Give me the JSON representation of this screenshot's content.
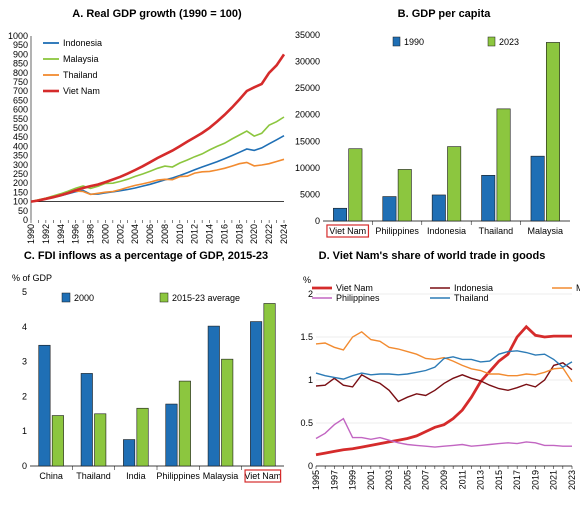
{
  "chart_data": [
    {
      "type": "line",
      "title": "A. Real GDP growth (1990 = 100)",
      "x": [
        1990,
        1991,
        1992,
        1993,
        1994,
        1995,
        1996,
        1997,
        1998,
        1999,
        2000,
        2001,
        2002,
        2003,
        2004,
        2005,
        2006,
        2007,
        2008,
        2009,
        2010,
        2011,
        2012,
        2013,
        2014,
        2015,
        2016,
        2017,
        2018,
        2019,
        2020,
        2021,
        2022,
        2023,
        2024
      ],
      "x_ticks": [
        "1990",
        "1992",
        "1994",
        "1996",
        "1998",
        "2000",
        "2002",
        "2004",
        "2006",
        "2008",
        "2010",
        "2012",
        "2014",
        "2016",
        "2018",
        "2020",
        "2022",
        "2024"
      ],
      "ylim": [
        0,
        1000
      ],
      "y_ticks": [
        "0",
        "50",
        "100",
        "150",
        "200",
        "250",
        "300",
        "350",
        "400",
        "450",
        "500",
        "550",
        "600",
        "650",
        "700",
        "750",
        "800",
        "850",
        "900",
        "950",
        "1000"
      ],
      "legend_position": "top-left",
      "series": [
        {
          "name": "Indonesia",
          "color": "#1f6fb5",
          "values": [
            100,
            107,
            115,
            123,
            132,
            143,
            154,
            161,
            140,
            141,
            148,
            153,
            159,
            166,
            174,
            184,
            194,
            206,
            218,
            228,
            242,
            257,
            273,
            288,
            302,
            317,
            333,
            350,
            368,
            386,
            378,
            392,
            414,
            436,
            458
          ]
        },
        {
          "name": "Malaysia",
          "color": "#8cc63f",
          "values": [
            100,
            110,
            119,
            131,
            143,
            157,
            173,
            185,
            172,
            183,
            199,
            200,
            210,
            222,
            237,
            250,
            265,
            281,
            293,
            288,
            310,
            326,
            344,
            359,
            381,
            400,
            417,
            440,
            462,
            483,
            456,
            471,
            515,
            534,
            560
          ]
        },
        {
          "name": "Thailand",
          "color": "#f28b30",
          "values": [
            100,
            109,
            118,
            127,
            137,
            149,
            157,
            155,
            139,
            145,
            151,
            155,
            165,
            177,
            188,
            196,
            206,
            217,
            221,
            219,
            236,
            238,
            255,
            262,
            264,
            272,
            281,
            293,
            306,
            313,
            294,
            299,
            306,
            318,
            330
          ]
        },
        {
          "name": "Viet Nam",
          "color": "#d52b2b",
          "values": [
            100,
            106,
            115,
            124,
            135,
            147,
            161,
            174,
            184,
            193,
            206,
            220,
            235,
            252,
            272,
            292,
            314,
            337,
            357,
            377,
            401,
            426,
            449,
            473,
            501,
            535,
            571,
            611,
            655,
            701,
            721,
            739,
            800,
            841,
            900
          ]
        }
      ]
    },
    {
      "type": "bar",
      "title": "B. GDP per capita",
      "categories": [
        "Viet Nam",
        "Philippines",
        "Indonesia",
        "Thailand",
        "Malaysia"
      ],
      "highlight": "Viet Nam",
      "ylim": [
        0,
        35000
      ],
      "y_ticks": [
        "0",
        "5000",
        "10000",
        "15000",
        "20000",
        "25000",
        "30000",
        "35000"
      ],
      "legend_position": "top-left",
      "series": [
        {
          "name": "1990",
          "color": "#1f6fb5",
          "values": [
            2400,
            4600,
            4900,
            8600,
            12200
          ]
        },
        {
          "name": "2023",
          "color": "#8cc63f",
          "values": [
            13600,
            9700,
            14000,
            21100,
            33600
          ]
        }
      ]
    },
    {
      "type": "bar",
      "title": "C. FDI inflows as a percentage of GDP, 2015-23",
      "ylabel": "% of GDP",
      "categories": [
        "China",
        "Thailand",
        "India",
        "Philippines",
        "Malaysia",
        "Viet Nam"
      ],
      "highlight": "Viet Nam",
      "ylim": [
        0,
        5
      ],
      "y_ticks": [
        "0",
        "1",
        "2",
        "3",
        "4",
        "5"
      ],
      "legend_position": "top",
      "series": [
        {
          "name": "2000",
          "color": "#1f6fb5",
          "values": [
            3.47,
            2.66,
            0.76,
            1.78,
            4.02,
            4.15
          ]
        },
        {
          "name": "2015-23 average",
          "color": "#8cc63f",
          "values": [
            1.45,
            1.5,
            1.66,
            2.44,
            3.07,
            4.67
          ]
        }
      ]
    },
    {
      "type": "line",
      "title": "D. Viet Nam's share of world trade in goods",
      "ylabel": "%",
      "x": [
        1995,
        1996,
        1997,
        1998,
        1999,
        2000,
        2001,
        2002,
        2003,
        2004,
        2005,
        2006,
        2007,
        2008,
        2009,
        2010,
        2011,
        2012,
        2013,
        2014,
        2015,
        2016,
        2017,
        2018,
        2019,
        2020,
        2021,
        2022,
        2023
      ],
      "x_ticks": [
        "1995",
        "1997",
        "1999",
        "2001",
        "2003",
        "2005",
        "2007",
        "2009",
        "2011",
        "2013",
        "2015",
        "2017",
        "2019",
        "2021",
        "2023"
      ],
      "ylim": [
        0,
        2
      ],
      "y_ticks": [
        "0",
        "0.5",
        "1",
        "1.5",
        "2"
      ],
      "legend_position": "top",
      "series": [
        {
          "name": "Viet Nam",
          "color": "#d52b2b",
          "values": [
            0.13,
            0.15,
            0.17,
            0.19,
            0.2,
            0.22,
            0.24,
            0.26,
            0.28,
            0.3,
            0.32,
            0.35,
            0.4,
            0.45,
            0.48,
            0.55,
            0.65,
            0.8,
            0.98,
            1.1,
            1.22,
            1.3,
            1.5,
            1.62,
            1.52,
            1.5,
            1.51,
            1.51,
            1.51
          ]
        },
        {
          "name": "Indonesia",
          "color": "#7a0f14",
          "values": [
            0.93,
            0.94,
            1.02,
            0.94,
            0.92,
            1.06,
            1.0,
            0.96,
            0.88,
            0.75,
            0.8,
            0.84,
            0.82,
            0.88,
            0.96,
            1.02,
            1.06,
            1.02,
            0.99,
            0.94,
            0.9,
            0.88,
            0.91,
            0.95,
            0.92,
            1.0,
            1.17,
            1.2,
            1.12
          ]
        },
        {
          "name": "Malaysia",
          "color": "#f28b30",
          "values": [
            1.42,
            1.43,
            1.38,
            1.35,
            1.5,
            1.56,
            1.47,
            1.45,
            1.38,
            1.36,
            1.33,
            1.3,
            1.25,
            1.24,
            1.26,
            1.22,
            1.17,
            1.13,
            1.11,
            1.07,
            1.07,
            1.05,
            1.05,
            1.07,
            1.06,
            1.09,
            1.13,
            1.14,
            0.98
          ]
        },
        {
          "name": "Philippines",
          "color": "#c266c2",
          "values": [
            0.32,
            0.38,
            0.48,
            0.55,
            0.33,
            0.33,
            0.31,
            0.33,
            0.3,
            0.27,
            0.25,
            0.24,
            0.23,
            0.22,
            0.23,
            0.24,
            0.25,
            0.23,
            0.24,
            0.25,
            0.26,
            0.27,
            0.26,
            0.28,
            0.27,
            0.24,
            0.24,
            0.23,
            0.23
          ]
        },
        {
          "name": "Thailand",
          "color": "#2c7bb6",
          "values": [
            1.08,
            1.05,
            1.03,
            1.01,
            1.05,
            1.08,
            1.06,
            1.07,
            1.07,
            1.06,
            1.07,
            1.09,
            1.11,
            1.15,
            1.25,
            1.27,
            1.24,
            1.24,
            1.21,
            1.22,
            1.3,
            1.33,
            1.34,
            1.32,
            1.29,
            1.3,
            1.24,
            1.15,
            1.21
          ]
        }
      ]
    }
  ]
}
